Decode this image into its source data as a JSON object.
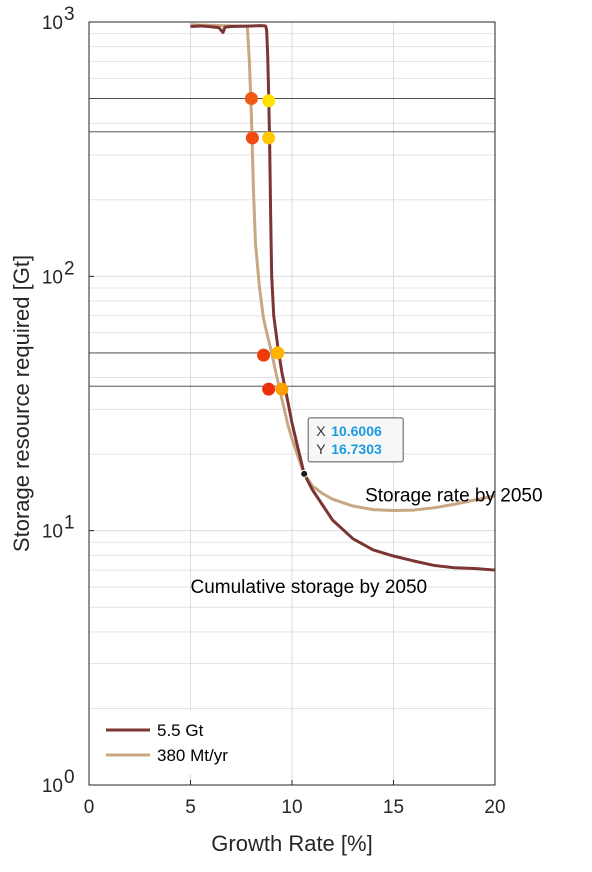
{
  "chart_data": {
    "type": "line",
    "xlabel": "Growth Rate [%]",
    "ylabel": "Storage resource required [Gt]",
    "xlim": [
      0,
      20
    ],
    "ylim": [
      1,
      1000
    ],
    "yscale": "log",
    "grid": true,
    "x_ticks": [
      {
        "value": 0,
        "label": "0"
      },
      {
        "value": 5,
        "label": "5"
      },
      {
        "value": 10,
        "label": "10"
      },
      {
        "value": 15,
        "label": "15"
      },
      {
        "value": 20,
        "label": "20"
      }
    ],
    "y_ticks": [
      {
        "value": 1,
        "base": "10",
        "exp": "0"
      },
      {
        "value": 10,
        "base": "10",
        "exp": "1"
      },
      {
        "value": 100,
        "base": "10",
        "exp": "2"
      },
      {
        "value": 1000,
        "base": "10",
        "exp": "3"
      }
    ],
    "legend_position": "bottom-left",
    "series": [
      {
        "name": "5.5 Gt",
        "color": "#7b3535",
        "points": [
          [
            5.0,
            960
          ],
          [
            5.5,
            965
          ],
          [
            6.0,
            958
          ],
          [
            6.4,
            950
          ],
          [
            6.6,
            910
          ],
          [
            6.7,
            955
          ],
          [
            7.0,
            960
          ],
          [
            7.5,
            962
          ],
          [
            8.0,
            965
          ],
          [
            8.5,
            968
          ],
          [
            8.7,
            965
          ],
          [
            8.75,
            930
          ],
          [
            8.8,
            750
          ],
          [
            8.85,
            520
          ],
          [
            8.9,
            330
          ],
          [
            8.95,
            170
          ],
          [
            9.0,
            100
          ],
          [
            9.1,
            70
          ],
          [
            9.3,
            53
          ],
          [
            9.5,
            42
          ],
          [
            9.8,
            32
          ],
          [
            10.0,
            26.5
          ],
          [
            10.3,
            21
          ],
          [
            10.6,
            16.73
          ],
          [
            11.0,
            14.5
          ],
          [
            12.0,
            11.0
          ],
          [
            13.0,
            9.3
          ],
          [
            14.0,
            8.4
          ],
          [
            15.0,
            7.95
          ],
          [
            16.0,
            7.6
          ],
          [
            17.0,
            7.3
          ],
          [
            18.0,
            7.15
          ],
          [
            19.0,
            7.1
          ],
          [
            20.0,
            7.0
          ]
        ]
      },
      {
        "name": "380 Mt/yr",
        "color": "#c8a882",
        "points": [
          [
            5.0,
            975
          ],
          [
            5.5,
            972
          ],
          [
            6.0,
            970
          ],
          [
            6.5,
            968
          ],
          [
            7.0,
            966
          ],
          [
            7.5,
            965
          ],
          [
            7.8,
            962
          ],
          [
            7.9,
            700
          ],
          [
            8.0,
            430
          ],
          [
            8.1,
            220
          ],
          [
            8.2,
            135
          ],
          [
            8.4,
            90
          ],
          [
            8.6,
            68
          ],
          [
            8.8,
            58
          ],
          [
            9.0,
            50
          ],
          [
            9.2,
            42
          ],
          [
            9.5,
            33
          ],
          [
            9.8,
            26
          ],
          [
            10.0,
            23
          ],
          [
            10.3,
            19.5
          ],
          [
            10.6,
            16.73
          ],
          [
            11.0,
            15.0
          ],
          [
            11.5,
            14.0
          ],
          [
            12.0,
            13.3
          ],
          [
            13.0,
            12.5
          ],
          [
            14.0,
            12.1
          ],
          [
            15.0,
            12.0
          ],
          [
            16.0,
            12.05
          ],
          [
            17.0,
            12.3
          ],
          [
            18.0,
            12.7
          ],
          [
            19.0,
            13.2
          ],
          [
            20.0,
            13.7
          ]
        ]
      }
    ],
    "reference_lines_y": [
      500,
      370,
      50,
      37
    ],
    "markers": [
      {
        "x": 8.0,
        "y": 500,
        "color": "#f05a14"
      },
      {
        "x": 8.85,
        "y": 490,
        "color": "#ffe000"
      },
      {
        "x": 8.05,
        "y": 350,
        "color": "#f04a10"
      },
      {
        "x": 8.85,
        "y": 350,
        "color": "#ffc800"
      },
      {
        "x": 8.6,
        "y": 49,
        "color": "#f03c0a"
      },
      {
        "x": 9.3,
        "y": 50,
        "color": "#ffb400"
      },
      {
        "x": 8.85,
        "y": 36,
        "color": "#ee3008"
      },
      {
        "x": 9.5,
        "y": 36,
        "color": "#ffa000"
      }
    ],
    "annotations": [
      {
        "text": "Storage rate by 2050",
        "x": 13.6,
        "y": 13.0
      },
      {
        "text": "Cumulative storage by 2050",
        "x": 5.0,
        "y": 5.7
      }
    ],
    "datatip": {
      "x": 10.6006,
      "y": 16.7303,
      "x_key": "X",
      "y_key": "Y",
      "x_text": "10.6006",
      "y_text": "16.7303"
    }
  }
}
